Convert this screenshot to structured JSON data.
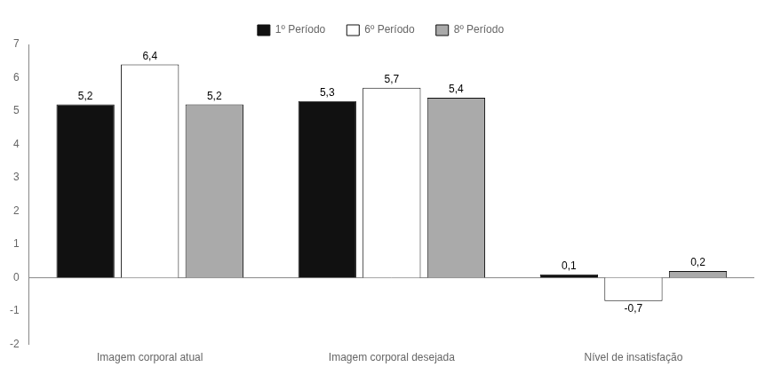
{
  "chart_data": {
    "type": "bar",
    "categories": [
      "Imagem corporal atual",
      "Imagem corporal desejada",
      "Nível de insatisfação"
    ],
    "series": [
      {
        "name": "1º Período",
        "color": "#111111",
        "values": [
          5.2,
          5.3,
          0.1
        ],
        "value_labels": [
          "5,2",
          "5,3",
          "0,1"
        ]
      },
      {
        "name": "6º Período",
        "color": "#ffffff",
        "values": [
          6.4,
          5.7,
          -0.7
        ],
        "value_labels": [
          "6,4",
          "5,7",
          "-0,7"
        ]
      },
      {
        "name": "8º Período",
        "color": "#aaaaaa",
        "values": [
          5.2,
          5.4,
          0.2
        ],
        "value_labels": [
          "5,2",
          "5,4",
          "0,2"
        ]
      }
    ],
    "ylim": [
      -2,
      7
    ],
    "yticks": [
      -2,
      -1,
      0,
      1,
      2,
      3,
      4,
      5,
      6,
      7
    ],
    "grid": false,
    "legend": "top",
    "data_labels": true
  }
}
